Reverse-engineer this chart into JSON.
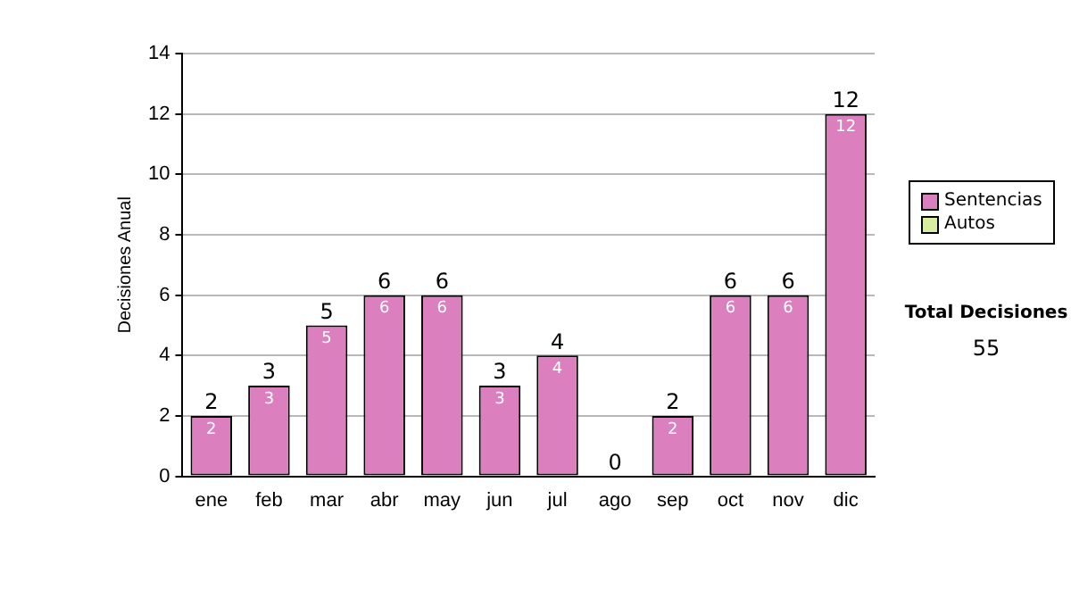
{
  "chart_data": {
    "type": "bar",
    "stacked": true,
    "ylabel": "Decisiones Anual",
    "categories": [
      "ene",
      "feb",
      "mar",
      "abr",
      "may",
      "jun",
      "jul",
      "ago",
      "sep",
      "oct",
      "nov",
      "dic"
    ],
    "series": [
      {
        "name": "Sentencias",
        "color": "#db7fbf",
        "values": [
          2,
          3,
          5,
          6,
          6,
          3,
          4,
          0,
          2,
          6,
          6,
          12
        ],
        "value_labels": [
          "2",
          "3",
          "5",
          "6",
          "6",
          "3",
          "4",
          null,
          "2",
          "6",
          "6",
          "12"
        ]
      },
      {
        "name": "Autos",
        "color": "#d9eda0",
        "values": [
          0,
          0,
          0,
          0,
          0,
          0,
          0,
          0,
          0,
          0,
          0,
          0
        ]
      }
    ],
    "totals": [
      "2",
      "3",
      "5",
      "6",
      "6",
      "3",
      "4",
      "0",
      "2",
      "6",
      "6",
      "12"
    ],
    "ylim": [
      0,
      14
    ],
    "yticks": [
      0,
      2,
      4,
      6,
      8,
      10,
      12,
      14
    ],
    "grid": "y",
    "legend": "right",
    "annotations": [
      "Total Decisiones",
      "55"
    ]
  }
}
